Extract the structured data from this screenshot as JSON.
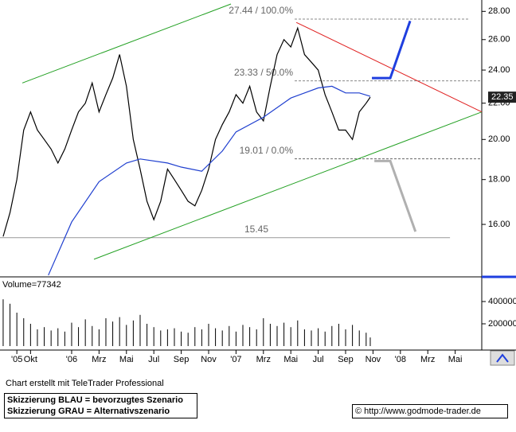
{
  "chart_data": [
    {
      "type": "line",
      "log_scale": true,
      "grid": false,
      "xlim": [
        -5.23,
        29.94
      ],
      "ylim": [
        13.94,
        28.85
      ],
      "xticks": [
        {
          "value": -4,
          "label": "'05"
        },
        {
          "value": -3,
          "label": "Okt"
        },
        {
          "value": 0,
          "label": "'06"
        },
        {
          "value": 2,
          "label": "Mrz"
        },
        {
          "value": 4,
          "label": "Mai"
        },
        {
          "value": 6,
          "label": "Jul"
        },
        {
          "value": 8,
          "label": "Sep"
        },
        {
          "value": 10,
          "label": "Nov"
        },
        {
          "value": 12,
          "label": "'07"
        },
        {
          "value": 14,
          "label": "Mrz"
        },
        {
          "value": 16,
          "label": "Mai"
        },
        {
          "value": 18,
          "label": "Jul"
        },
        {
          "value": 20,
          "label": "Sep"
        },
        {
          "value": 22,
          "label": "Nov"
        },
        {
          "value": 24,
          "label": "'08"
        },
        {
          "value": 26,
          "label": "Mrz"
        },
        {
          "value": 28,
          "label": "Mai"
        }
      ],
      "yticks": [
        {
          "value": 16,
          "label": "16.00"
        },
        {
          "value": 18,
          "label": "18.00"
        },
        {
          "value": 20,
          "label": "20.00"
        },
        {
          "value": 22,
          "label": "22.00"
        },
        {
          "value": 24,
          "label": "24.00"
        },
        {
          "value": 26,
          "label": "26.00"
        },
        {
          "value": 28,
          "label": "28.00"
        }
      ],
      "x": [
        -5,
        -4.5,
        -4,
        -3.5,
        -3,
        -2.5,
        -2,
        -1.5,
        -1,
        -0.5,
        0,
        0.5,
        1,
        1.5,
        2,
        2.5,
        3,
        3.5,
        4,
        4.5,
        5,
        5.5,
        6,
        6.5,
        7,
        7.5,
        8,
        8.5,
        9,
        9.5,
        10,
        10.5,
        11,
        11.5,
        12,
        12.5,
        13,
        13.5,
        14,
        14.5,
        15,
        15.5,
        16,
        16.5,
        17,
        17.5,
        18,
        18.5,
        19,
        19.5,
        20,
        20.5,
        21,
        21.5,
        21.8
      ],
      "series": [
        {
          "color": "#000000",
          "values": [
            15.5,
            16.5,
            18,
            20.5,
            21.5,
            20.5,
            20,
            19.5,
            18.8,
            19.5,
            20.5,
            21.5,
            22,
            23.2,
            21.5,
            22.5,
            23.5,
            25,
            23,
            20,
            18.5,
            17,
            16.2,
            17,
            18.5,
            18,
            17.5,
            17,
            16.8,
            17.5,
            18.5,
            20,
            20.8,
            21.5,
            22.5,
            22,
            23,
            21.5,
            21,
            23,
            25,
            26,
            25.5,
            26.8,
            25,
            24.5,
            24,
            22.5,
            21.5,
            20.5,
            20.5,
            20,
            21.5,
            22,
            22.35
          ]
        },
        {
          "color": "#1f3fcf",
          "x": [
            -1.7,
            0,
            2,
            4,
            5,
            7,
            8,
            9.5,
            11,
            12,
            14,
            16,
            18,
            19,
            20,
            21,
            21.8
          ],
          "values": [
            14,
            16.1,
            17.9,
            18.8,
            19,
            18.8,
            18.6,
            18.4,
            19.4,
            20.4,
            21.2,
            22.3,
            22.9,
            23,
            22.6,
            22.6,
            22.4
          ]
        }
      ],
      "last_price": {
        "value": 22.35,
        "label": "22.35"
      },
      "levels": [
        {
          "value": 27.44,
          "label": "27.44 / 100.0%",
          "x": [
            16.28,
            28.95
          ],
          "color": "#888888",
          "style": "dashed"
        },
        {
          "value": 23.33,
          "label": "23.33 / 50.0%",
          "x": [
            16.28,
            29.94
          ],
          "color": "#888888",
          "style": "dashed"
        },
        {
          "value": 19.01,
          "label": "19.01 / 0.0%",
          "x": [
            16.28,
            29.94
          ],
          "color": "#666666",
          "style": "dashed"
        },
        {
          "value": 15.45,
          "label": "15.45",
          "x": [
            -5.23,
            27.62
          ],
          "color": "#999999",
          "style": "solid"
        }
      ],
      "trendlines": [
        {
          "color": "#22a022",
          "x": [
            -3.6,
            11.63
          ],
          "values": [
            23.2,
            28.55
          ],
          "width": 1
        },
        {
          "color": "#22a022",
          "x": [
            1.63,
            29.94
          ],
          "values": [
            14.6,
            21.5
          ],
          "width": 1
        },
        {
          "color": "#e02020",
          "x": [
            16.4,
            29.94
          ],
          "values": [
            27.2,
            21.5
          ],
          "width": 1
        },
        {
          "color": "#1f3fdf",
          "x": [
            21.92,
            23.26,
            24.71
          ],
          "values": [
            23.5,
            23.5,
            27.3
          ],
          "width": 3
        },
        {
          "color": "#b0b0b0",
          "x": [
            22.1,
            23.26,
            25.1
          ],
          "values": [
            18.9,
            18.9,
            15.7
          ],
          "width": 3
        }
      ]
    },
    {
      "type": "bar",
      "title": "Volume=77342",
      "color": "#000000",
      "xlim": [
        -5.23,
        29.94
      ],
      "ylim": [
        -35700,
        607000
      ],
      "yticks": [
        200000,
        400000
      ],
      "x": [
        -5,
        -4.5,
        -4,
        -3.5,
        -3,
        -2.5,
        -2,
        -1.5,
        -1,
        -0.5,
        0,
        0.5,
        1,
        1.5,
        2,
        2.5,
        3,
        3.5,
        4,
        4.5,
        5,
        5.5,
        6,
        6.5,
        7,
        7.5,
        8,
        8.5,
        9,
        9.5,
        10,
        10.5,
        11,
        11.5,
        12,
        12.5,
        13,
        13.5,
        14,
        14.5,
        15,
        15.5,
        16,
        16.5,
        17,
        17.5,
        18,
        18.5,
        19,
        19.5,
        20,
        20.5,
        21,
        21.5,
        21.8
      ],
      "values": [
        420000,
        380000,
        300000,
        250000,
        200000,
        150000,
        170000,
        140000,
        160000,
        130000,
        210000,
        170000,
        240000,
        180000,
        150000,
        250000,
        220000,
        260000,
        190000,
        230000,
        280000,
        200000,
        170000,
        140000,
        150000,
        160000,
        130000,
        120000,
        170000,
        150000,
        200000,
        160000,
        140000,
        180000,
        130000,
        190000,
        170000,
        150000,
        250000,
        200000,
        180000,
        210000,
        170000,
        230000,
        150000,
        140000,
        160000,
        130000,
        180000,
        200000,
        150000,
        190000,
        140000,
        120000,
        77342
      ]
    }
  ],
  "footer": {
    "credit": "Chart erstellt mit TeleTrader Professional",
    "legend_lines": [
      "Skizzierung BLAU = bevorzugtes Szenario",
      "Skizzierung GRAU = Alternativszenario"
    ],
    "source": "© http://www.godmode-trader.de"
  }
}
